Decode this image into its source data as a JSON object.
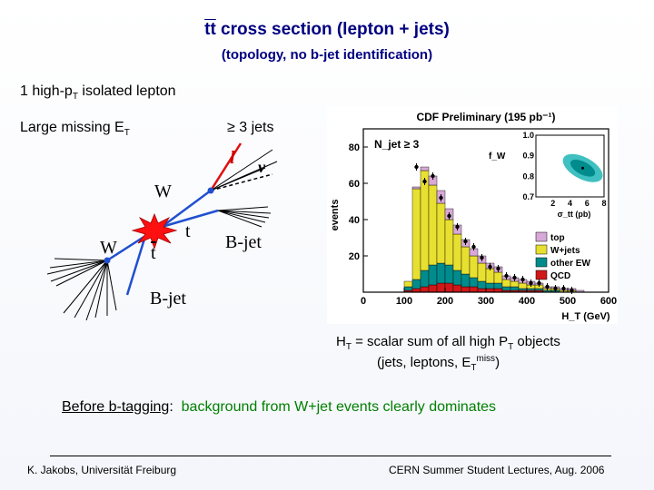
{
  "slide": {
    "title": "tt cross section (lepton + jets)",
    "subtitle": "(topology, no b-jet identification)",
    "lepton_line_pre": "1 high-p",
    "lepton_line_sub": "T",
    "lepton_line_post": " isolated lepton",
    "missing_pre": "Large missing E",
    "missing_sub": "T",
    "jets_label": "≥ 3 jets",
    "ht_line1_pre": "H",
    "ht_line1_sub": "T",
    "ht_line1_mid": " = scalar sum of all high P",
    "ht_line1_sub2": "T",
    "ht_line1_post": " objects",
    "ht_line2_pre": "(jets, leptons, E",
    "ht_line2_sub": "T",
    "ht_line2_sup": "miss",
    "ht_line2_post": ")",
    "bottom_prefix": "Before b-tagging",
    "bottom_colon": ":",
    "bottom_text": "background from W+jet events clearly dominates",
    "footer_left": "K. Jakobs, Universität Freiburg",
    "footer_right": "CERN Summer Student Lectures,  Aug.  2006"
  },
  "diagram": {
    "lepton": "l",
    "neutrino": "ν",
    "w_upper": "W",
    "w_lower": "W",
    "top": "t",
    "antitop": "t",
    "bjet_right": "B-jet",
    "bjet_lower": "B-jet"
  },
  "chart_data": {
    "type": "bar",
    "title": "CDF Preliminary (195 pb⁻¹)",
    "xlabel": "H_T (GeV)",
    "ylabel": "events",
    "xlim": [
      0,
      600
    ],
    "ylim": [
      0,
      90
    ],
    "x_ticks": [
      "0",
      "100",
      "200",
      "300",
      "400",
      "500",
      "600"
    ],
    "y_ticks": [
      "20",
      "40",
      "60",
      "80"
    ],
    "annotation": "N_jet ≥ 3",
    "bin_width": 20,
    "bins_start": [
      0,
      20,
      40,
      60,
      80,
      100,
      120,
      140,
      160,
      180,
      200,
      220,
      240,
      260,
      280,
      300,
      320,
      340,
      360,
      380,
      400,
      420,
      440,
      460,
      480,
      500,
      520,
      540,
      560,
      580
    ],
    "series": [
      {
        "name": "QCD",
        "color": "#d01818",
        "values": [
          0,
          0,
          0,
          0,
          0,
          1,
          2,
          3,
          4,
          5,
          5,
          4,
          3,
          3,
          2,
          2,
          2,
          1,
          1,
          1,
          1,
          1,
          0,
          0,
          0,
          0,
          0,
          0,
          0,
          0
        ]
      },
      {
        "name": "other EW",
        "color": "#008c8c",
        "values": [
          0,
          0,
          0,
          0,
          0,
          2,
          5,
          9,
          11,
          11,
          10,
          8,
          7,
          5,
          4,
          3,
          3,
          2,
          2,
          1,
          1,
          1,
          1,
          1,
          0,
          0,
          0,
          0,
          0,
          0
        ]
      },
      {
        "name": "W+jets",
        "color": "#e8e030",
        "values": [
          0,
          0,
          0,
          0,
          0,
          3,
          50,
          55,
          44,
          33,
          25,
          20,
          15,
          12,
          10,
          8,
          6,
          4,
          3,
          3,
          2,
          2,
          1,
          1,
          1,
          1,
          0,
          0,
          0,
          0
        ]
      },
      {
        "name": "top",
        "color": "#d8a8d8",
        "values": [
          0,
          0,
          0,
          0,
          0,
          0,
          1,
          2,
          5,
          7,
          6,
          5,
          4,
          4,
          4,
          3,
          3,
          2,
          2,
          2,
          2,
          1,
          1,
          1,
          1,
          1,
          1,
          0,
          0,
          0
        ]
      }
    ],
    "data_points": [
      {
        "x": 130,
        "y": 69
      },
      {
        "x": 150,
        "y": 61
      },
      {
        "x": 170,
        "y": 64
      },
      {
        "x": 190,
        "y": 52
      },
      {
        "x": 210,
        "y": 42
      },
      {
        "x": 230,
        "y": 36
      },
      {
        "x": 250,
        "y": 28
      },
      {
        "x": 270,
        "y": 25
      },
      {
        "x": 290,
        "y": 19
      },
      {
        "x": 310,
        "y": 14
      },
      {
        "x": 330,
        "y": 13
      },
      {
        "x": 350,
        "y": 9
      },
      {
        "x": 370,
        "y": 8
      },
      {
        "x": 390,
        "y": 7
      },
      {
        "x": 410,
        "y": 5
      },
      {
        "x": 430,
        "y": 5
      },
      {
        "x": 450,
        "y": 3
      },
      {
        "x": 470,
        "y": 2
      },
      {
        "x": 490,
        "y": 2
      },
      {
        "x": 510,
        "y": 1
      }
    ],
    "legend": [
      {
        "label": "top",
        "color": "#d8a8d8"
      },
      {
        "label": "W+jets",
        "color": "#e8e030"
      },
      {
        "label": "other EW",
        "color": "#008c8c"
      },
      {
        "label": "QCD",
        "color": "#d01818"
      }
    ],
    "inset": {
      "xlabel": "σ_tt (pb)",
      "ylabel": "f_W",
      "x_ticks": [
        "2",
        "4",
        "6",
        "8"
      ],
      "y_ticks": [
        "0.7",
        "0.8",
        "0.9",
        "1.0"
      ],
      "xlim": [
        0,
        8
      ],
      "ylim": [
        0.7,
        1.0
      ],
      "best_fit": {
        "x": 5.5,
        "y": 0.84
      }
    }
  }
}
